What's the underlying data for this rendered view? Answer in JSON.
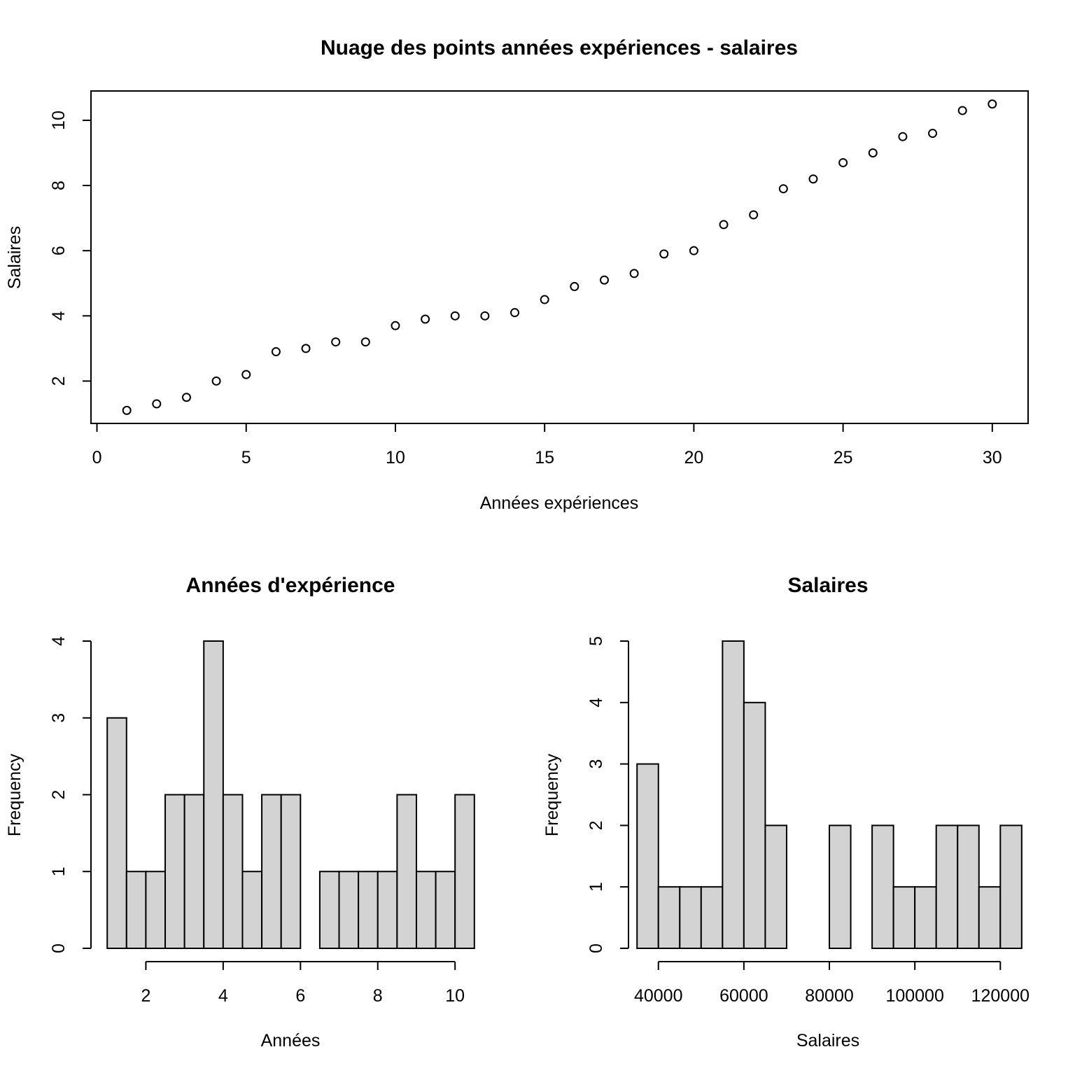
{
  "colors": {
    "bar_fill": "#d3d3d3",
    "ink": "#000000",
    "background": "#ffffff"
  },
  "chart_data": [
    {
      "id": "scatter",
      "type": "scatter",
      "title": "Nuage des points années expériences - salaires",
      "xlabel": "Années expériences",
      "ylabel": "Salaires",
      "xlim": [
        -0.2,
        31.2
      ],
      "ylim": [
        0.7,
        10.9
      ],
      "xticks": [
        0,
        5,
        10,
        15,
        20,
        25,
        30
      ],
      "yticks": [
        2,
        4,
        6,
        8,
        10
      ],
      "grid": false,
      "frame": true,
      "x": [
        1,
        2,
        3,
        4,
        5,
        6,
        7,
        8,
        9,
        10,
        11,
        12,
        13,
        14,
        15,
        16,
        17,
        18,
        19,
        20,
        21,
        22,
        23,
        24,
        25,
        26,
        27,
        28,
        29,
        30
      ],
      "y": [
        1.1,
        1.3,
        1.5,
        2.0,
        2.2,
        2.9,
        3.0,
        3.2,
        3.2,
        3.7,
        3.9,
        4.0,
        4.0,
        4.1,
        4.5,
        4.9,
        5.1,
        5.3,
        5.9,
        6.0,
        6.8,
        7.1,
        7.9,
        8.2,
        8.7,
        9.0,
        9.5,
        9.6,
        10.3,
        10.5
      ]
    },
    {
      "id": "hist-annees",
      "type": "bar",
      "title": "Années d'expérience",
      "xlabel": "Années",
      "ylabel": "Frequency",
      "xlim": [
        0.58,
        10.92
      ],
      "ylim": [
        0,
        4
      ],
      "xticks": [
        2,
        4,
        6,
        8,
        10
      ],
      "yticks": [
        0,
        1,
        2,
        3,
        4
      ],
      "grid": false,
      "frame": false,
      "bin_start": 1.0,
      "bin_width": 0.5,
      "values": [
        3,
        1,
        1,
        2,
        2,
        4,
        2,
        1,
        2,
        2,
        0,
        1,
        1,
        1,
        1,
        2,
        1,
        1,
        2
      ]
    },
    {
      "id": "hist-salaires",
      "type": "bar",
      "title": "Salaires",
      "xlabel": "Salaires",
      "ylabel": "Frequency",
      "xlim": [
        33000,
        126500
      ],
      "ylim": [
        0,
        5
      ],
      "xticks": [
        40000,
        60000,
        80000,
        100000,
        120000
      ],
      "yticks": [
        0,
        1,
        2,
        3,
        4,
        5
      ],
      "grid": false,
      "frame": false,
      "bin_start": 35000,
      "bin_width": 5000,
      "values": [
        3,
        1,
        1,
        1,
        5,
        4,
        2,
        0,
        0,
        2,
        0,
        2,
        1,
        1,
        2,
        2,
        1,
        2
      ]
    }
  ]
}
